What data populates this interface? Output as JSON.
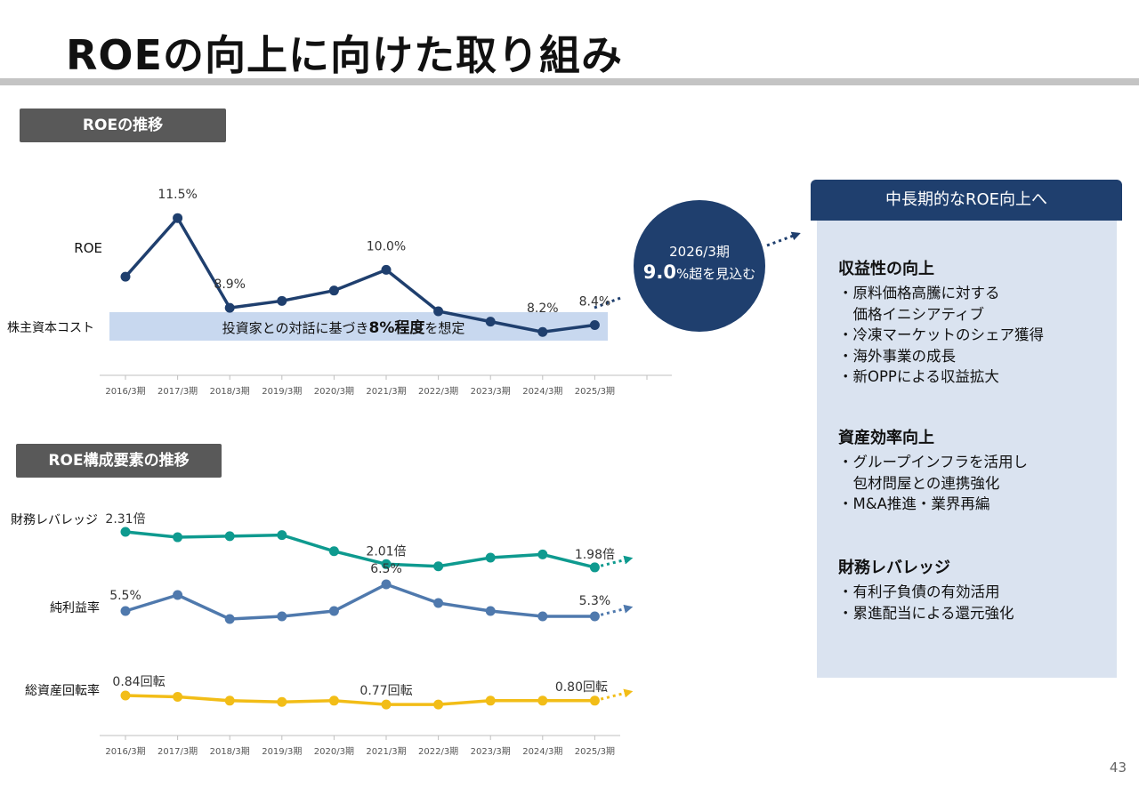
{
  "title": "ROEの向上に向けた取り組み",
  "page_number": "43",
  "section1": {
    "label": "ROEの推移"
  },
  "section2": {
    "label": "ROE構成要素の推移"
  },
  "roe_chart": {
    "series_label": "ROE",
    "band_label": "株主資本コスト",
    "band_text_a": "投資家との対話に基づき",
    "band_text_b": "8%程度",
    "band_text_c": "を想定"
  },
  "circle": {
    "line1": "2026/3期",
    "value": "9.0",
    "suffix": "%超を見込む"
  },
  "panel": {
    "header": "中長期的なROE向上へ",
    "groups": [
      {
        "title": "収益性の向上",
        "items": [
          "・原料価格高騰に対する",
          "　価格イニシアティブ",
          "・冷凍マーケットのシェア獲得",
          "・海外事業の成長",
          "・新OPPによる収益拡大"
        ]
      },
      {
        "title": "資産効率向上",
        "items": [
          "・グループインフラを活用し",
          "　包材問屋との連携強化",
          "・M&A推進・業界再編"
        ]
      },
      {
        "title": "財務レバレッジ",
        "items": [
          "・有利子負債の有効活用",
          "・累進配当による還元強化"
        ]
      }
    ]
  },
  "colors": {
    "roe": "#1f3f6e",
    "leverage": "#0e9a8f",
    "margin": "#4f79ad",
    "turnover": "#f2bd17",
    "band": "#c8d8ef"
  },
  "chart_data": [
    {
      "type": "line",
      "title": "ROEの推移",
      "categories": [
        "2016/3期",
        "2017/3期",
        "2018/3期",
        "2019/3期",
        "2020/3期",
        "2021/3期",
        "2022/3期",
        "2023/3期",
        "2024/3期",
        "2025/3期"
      ],
      "series": [
        {
          "name": "ROE",
          "values": [
            9.8,
            11.5,
            8.9,
            9.1,
            9.4,
            10.0,
            8.8,
            8.5,
            8.2,
            8.4
          ]
        }
      ],
      "data_labels": [
        {
          "index": 1,
          "text": "11.5%"
        },
        {
          "index": 2,
          "text": "8.9%"
        },
        {
          "index": 5,
          "text": "10.0%"
        },
        {
          "index": 8,
          "text": "8.2%"
        },
        {
          "index": 9,
          "text": "8.4%"
        }
      ],
      "reference_band": {
        "label": "株主資本コスト",
        "value": 8,
        "unit": "%"
      },
      "ylim": [
        7.5,
        12.0
      ]
    },
    {
      "type": "line",
      "title": "ROE構成要素の推移",
      "categories": [
        "2016/3期",
        "2017/3期",
        "2018/3期",
        "2019/3期",
        "2020/3期",
        "2021/3期",
        "2022/3期",
        "2023/3期",
        "2024/3期",
        "2025/3期"
      ],
      "series": [
        {
          "name": "財務レバレッジ",
          "unit": "倍",
          "values": [
            2.31,
            2.26,
            2.27,
            2.28,
            2.13,
            2.01,
            1.99,
            2.07,
            2.1,
            1.98
          ],
          "data_labels": [
            {
              "index": 0,
              "text": "2.31倍"
            },
            {
              "index": 5,
              "text": "2.01倍"
            },
            {
              "index": 9,
              "text": "1.98倍"
            }
          ]
        },
        {
          "name": "純利益率",
          "unit": "%",
          "values": [
            5.5,
            6.1,
            5.2,
            5.3,
            5.5,
            6.5,
            5.8,
            5.5,
            5.3,
            5.3
          ],
          "data_labels": [
            {
              "index": 0,
              "text": "5.5%"
            },
            {
              "index": 5,
              "text": "6.5%"
            },
            {
              "index": 9,
              "text": "5.3%"
            }
          ]
        },
        {
          "name": "総資産回転率",
          "unit": "回転",
          "values": [
            0.84,
            0.83,
            0.8,
            0.79,
            0.8,
            0.77,
            0.77,
            0.8,
            0.8,
            0.8
          ],
          "data_labels": [
            {
              "index": 0,
              "text": "0.84回転"
            },
            {
              "index": 5,
              "text": "0.77回転"
            },
            {
              "index": 9,
              "text": "0.80回転"
            }
          ]
        }
      ]
    }
  ]
}
